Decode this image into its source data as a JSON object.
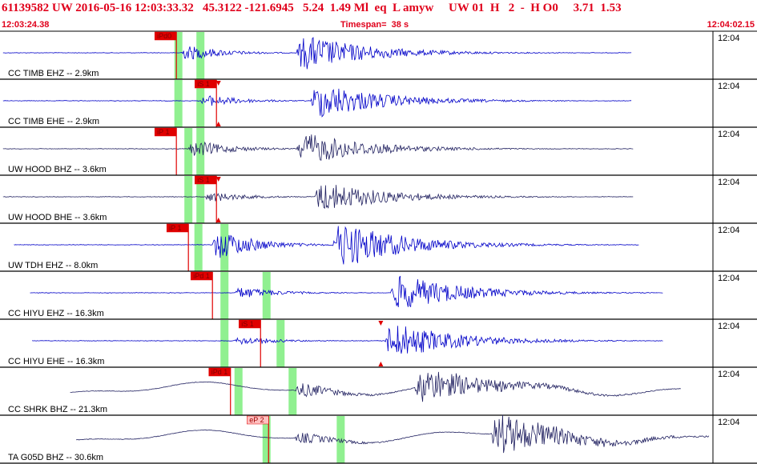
{
  "header": {
    "event_line": "61139582 UW 2016-05-16 12:03:33.32   45.3122 -121.6945   5.24  1.49 Ml  eq  L amyw     UW 01  H   2  -  H O0     3.71  1.53",
    "start_time": "12:03:24.38",
    "timespan": "Timespan=  38 s",
    "end_time": "12:04:02.15"
  },
  "colors": {
    "header_text": "#e0001b",
    "trace_blue": "#0000c8",
    "trace_navy": "#202060",
    "pick_red": "#e00000",
    "pick_flag_light": "#ffc0c0",
    "window_green": "#90f090"
  },
  "traces": [
    {
      "label": "CC TIMB EHZ -- 2.9km",
      "time_label": "12:04",
      "pick": "iPd0",
      "pick_style": "solid",
      "pick_t": 8.8,
      "green": [
        [
          8.7,
          9.1
        ],
        [
          9.8,
          10.2
        ]
      ],
      "color": "#0000c8",
      "amp": [
        {
          "t": 9.0,
          "a": 0.45
        },
        {
          "t": 14.8,
          "a": 1.0
        }
      ],
      "end": 31.5
    },
    {
      "label": "CC TIMB EHE -- 2.9km",
      "time_label": "12:04",
      "pick": "iS 1",
      "pick_style": "solid",
      "pick_t": 10.8,
      "green": [
        [
          8.7,
          9.1
        ],
        [
          9.8,
          10.2
        ]
      ],
      "color": "#0000c8",
      "amp": [
        {
          "t": 10.0,
          "a": 0.35
        },
        {
          "t": 15.5,
          "a": 1.0
        }
      ],
      "end": 31.5,
      "triangles": [
        10.9
      ]
    },
    {
      "label": "UW HOOD BHZ -- 3.6km",
      "time_label": "12:04",
      "pick": "iP 1",
      "pick_style": "solid",
      "pick_t": 8.8,
      "green": [
        [
          9.2,
          9.6
        ],
        [
          9.8,
          10.2
        ]
      ],
      "color": "#202060",
      "amp": [
        {
          "t": 9.4,
          "a": 0.5
        },
        {
          "t": 14.8,
          "a": 0.9
        }
      ],
      "end": 31.6
    },
    {
      "label": "UW HOOD BHE -- 3.6km",
      "time_label": "12:04",
      "pick": "iS 1",
      "pick_style": "solid",
      "pick_t": 10.8,
      "green": [
        [
          9.2,
          9.6
        ],
        [
          9.8,
          10.2
        ]
      ],
      "color": "#202060",
      "amp": [
        {
          "t": 10.2,
          "a": 0.3
        },
        {
          "t": 15.7,
          "a": 0.85
        }
      ],
      "end": 31.6,
      "triangles": [
        10.9
      ]
    },
    {
      "label": "UW TDH EHZ -- 8.0km",
      "time_label": "12:04",
      "pick": "iP 1",
      "pick_style": "solid",
      "pick_t": 9.4,
      "green": [
        [
          9.7,
          10.1
        ],
        [
          11.0,
          11.4
        ]
      ],
      "color": "#0000c8",
      "amp": [
        {
          "t": 10.6,
          "a": 0.9
        },
        {
          "t": 16.6,
          "a": 1.3
        }
      ],
      "end": 31.9,
      "start": 0.7
    },
    {
      "label": "CC HIYU EHZ -- 16.3km",
      "time_label": "12:04",
      "pick": "iPd 1",
      "pick_style": "solid",
      "pick_t": 10.6,
      "green": [
        [
          11.0,
          11.4
        ],
        [
          13.1,
          13.5
        ]
      ],
      "color": "#0000c8",
      "amp": [
        {
          "t": 11.7,
          "a": 0.35
        },
        {
          "t": 19.5,
          "a": 1.0
        }
      ],
      "end": 33.1,
      "start": 1.5
    },
    {
      "label": "CC HIYU EHE -- 16.3km",
      "time_label": "12:04",
      "pick": "iS 1",
      "pick_style": "solid",
      "pick_t": 13.0,
      "green": [
        [
          11.0,
          11.4
        ],
        [
          13.8,
          14.2
        ]
      ],
      "color": "#0000c8",
      "amp": [
        {
          "t": 11.7,
          "a": 0.25
        },
        {
          "t": 19.2,
          "a": 1.0
        }
      ],
      "end": 33.1,
      "start": 1.6,
      "triangles": [
        19.0
      ]
    },
    {
      "label": "CC SHRK BHZ -- 21.3km",
      "time_label": "12:04",
      "pick": "iPd 1",
      "pick_style": "solid",
      "pick_t": 11.5,
      "green": [
        [
          11.7,
          12.1
        ],
        [
          14.4,
          14.8
        ]
      ],
      "color": "#202060",
      "amp": [
        {
          "t": 14.7,
          "a": 0.45
        },
        {
          "t": 20.7,
          "a": 1.0
        }
      ],
      "end": 34.0,
      "start": 3.5,
      "lp": true
    },
    {
      "label": "TA G05D BHZ -- 30.6km",
      "time_label": "12:04",
      "pick": "eP 2",
      "pick_style": "light",
      "pick_t": 13.4,
      "green": [
        [
          13.1,
          13.5
        ],
        [
          16.8,
          17.2
        ]
      ],
      "color": "#202060",
      "amp": [
        {
          "t": 14.7,
          "a": 0.35
        },
        {
          "t": 24.5,
          "a": 1.2
        }
      ],
      "end": 35.4,
      "start": 3.8,
      "lp": true
    }
  ]
}
